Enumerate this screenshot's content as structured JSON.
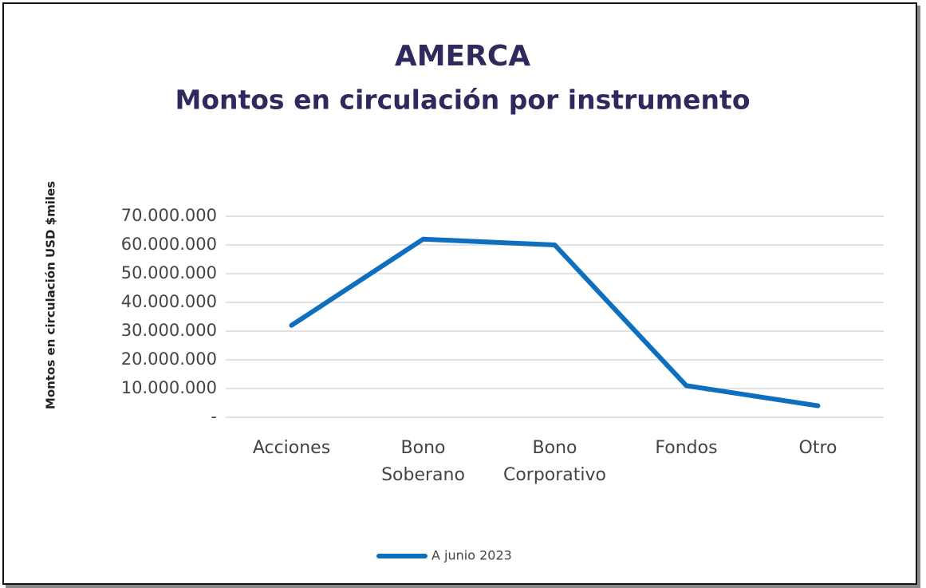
{
  "chart_data": {
    "type": "line",
    "title": "AMERCA",
    "subtitle": "Montos en circulación por instrumento",
    "y_label": "Montos en circulación USD $miles",
    "categories": [
      "Acciones",
      "Bono Soberano",
      "Bono Corporativo",
      "Fondos",
      "Otro"
    ],
    "series": [
      {
        "name": "A junio 2023",
        "color": "#0f6fbf",
        "values": [
          32000000,
          62000000,
          60000000,
          11000000,
          4000000
        ]
      }
    ],
    "ylim": [
      0,
      70000000
    ],
    "yticks": [
      {
        "value": 0,
        "label": "-"
      },
      {
        "value": 10000000,
        "label": "10.000.000"
      },
      {
        "value": 20000000,
        "label": "20.000.000"
      },
      {
        "value": 30000000,
        "label": "30.000.000"
      },
      {
        "value": 40000000,
        "label": "40.000.000"
      },
      {
        "value": 50000000,
        "label": "50.000.000"
      },
      {
        "value": 60000000,
        "label": "60.000.000"
      },
      {
        "value": 70000000,
        "label": "70.000.000"
      }
    ],
    "grid": true,
    "legend": "bottom"
  }
}
